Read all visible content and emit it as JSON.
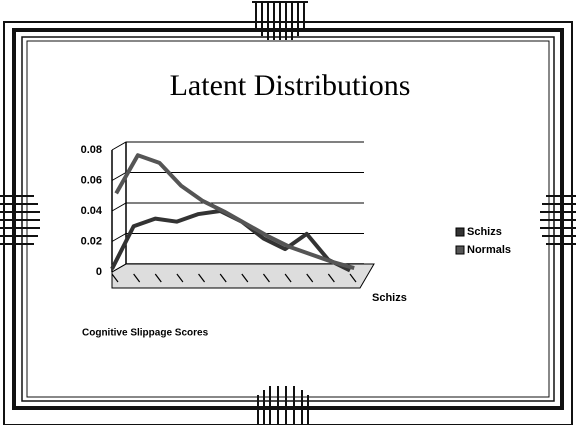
{
  "chart_data": {
    "type": "line",
    "title": "Latent Distributions",
    "x_label": "Cognitive Slippage Scores",
    "depth_label": "Schizs",
    "categories": [
      null,
      null,
      null,
      null,
      null,
      null,
      null,
      null,
      null,
      null,
      null,
      null
    ],
    "series": [
      {
        "name": "Schizs",
        "color": "#333333",
        "values": [
          0.002,
          0.03,
          0.035,
          0.033,
          0.038,
          0.04,
          0.033,
          0.022,
          0.015,
          0.025,
          0.008,
          0.001
        ]
      },
      {
        "name": "Normals",
        "color": "#555555",
        "values": [
          0.05,
          0.075,
          0.07,
          0.055,
          0.045,
          0.038,
          0.03,
          0.022,
          0.015,
          0.01,
          0.005,
          0.001
        ]
      }
    ],
    "ylim": [
      0,
      0.08
    ],
    "yticks": [
      0,
      0.02,
      0.04,
      0.06,
      0.08
    ],
    "grid": true
  }
}
